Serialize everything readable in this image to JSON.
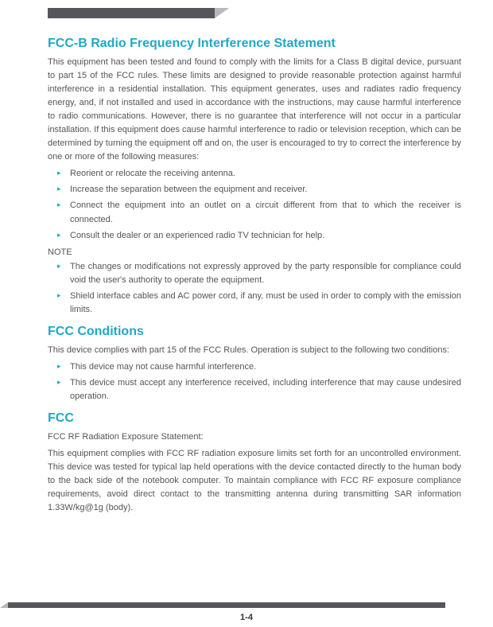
{
  "section1": {
    "heading": "FCC-B Radio Frequency Interference Statement",
    "intro": "This equipment has been tested and found to comply with the limits for a Class B digital device, pursuant to part 15 of the FCC rules. These limits are designed to provide reasonable protection against harmful interference in a residential installation. This equipment generates, uses and radiates radio frequency energy, and, if not installed and used in accordance with the instructions, may cause harmful interference to radio communications. However, there is no guarantee that interference will not occur in a particular installation. If this equipment does cause harmful interference to radio or television reception, which can be determined by turning the equipment off and on, the user is encouraged to try to correct the interference by one or more of the following measures:",
    "bullets": [
      "Reorient or relocate the receiving antenna.",
      "Increase the separation between the equipment and receiver.",
      "Connect the equipment into an outlet on a circuit different from that to which the receiver is connected.",
      "Consult the dealer or an experienced radio TV technician for help."
    ],
    "note_label": "NOTE",
    "note_bullets": [
      "The changes or modifications not expressly approved by the party responsible for compliance could void the user's authority to operate the equipment.",
      "Shield interface cables and AC power cord, if any, must be used in order to comply with the emission limits."
    ]
  },
  "section2": {
    "heading": "FCC Conditions",
    "intro": "This device complies with part 15 of the FCC Rules. Operation is subject to the following two conditions:",
    "bullets": [
      "This device may not cause harmful interference.",
      "This device must accept any interference received, including interference that may cause undesired operation."
    ]
  },
  "section3": {
    "heading": "FCC",
    "sub": "FCC RF Radiation Exposure Statement:",
    "body": "This equipment complies with FCC RF radiation exposure limits set forth for an uncontrolled environment. This device was tested for typical lap held operations with the device contacted directly to the human body to the back side of the notebook computer. To maintain compliance with FCC RF exposure compliance requirements, avoid direct contact to the transmitting antenna during transmitting SAR information 1.33W/kg@1g (body)."
  },
  "page_number": "1-4"
}
